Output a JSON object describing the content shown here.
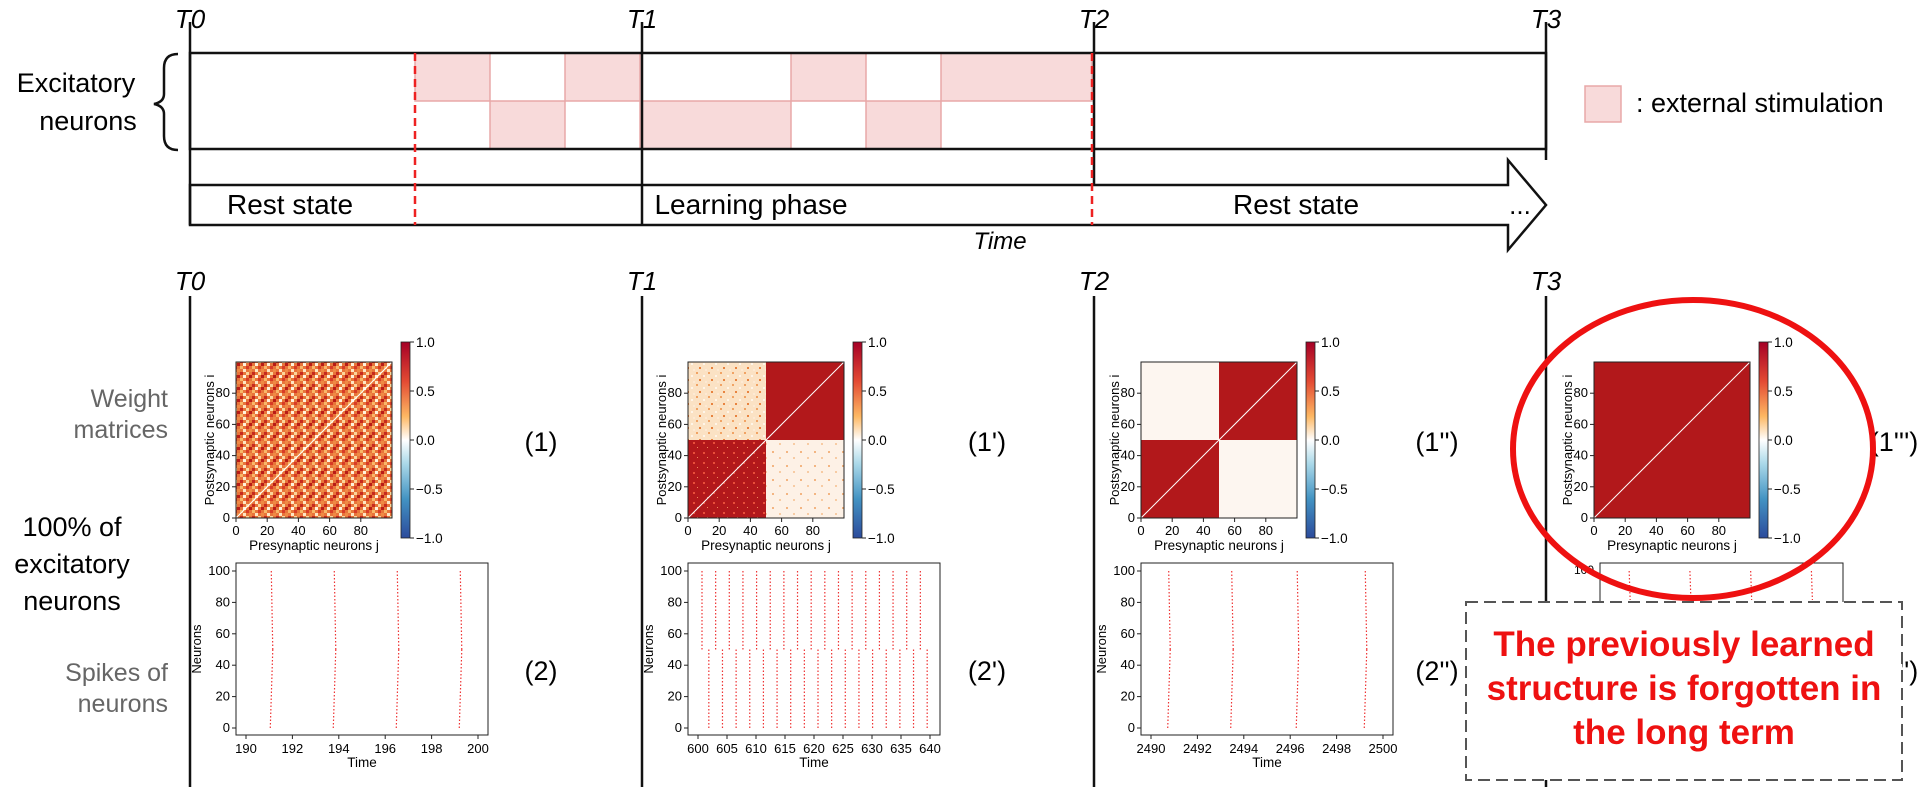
{
  "timeline": {
    "markers_top": [
      "T0",
      "T1",
      "T2",
      "T3"
    ],
    "markers_bottom": [
      "T0",
      "T1",
      "T2",
      "T3"
    ],
    "excitatory_label_1": "Excitatory",
    "excitatory_label_2": "neurons",
    "legend_label": ": external stimulation",
    "phases": [
      "Rest state",
      "Learning phase",
      "Rest state"
    ],
    "ellipsis": "...",
    "time_label": "Time"
  },
  "rows": {
    "weight_label_1": "Weight",
    "weight_label_2": "matrices",
    "pct_label_1": "100% of",
    "pct_label_2": "excitatory",
    "pct_label_3": "neurons",
    "spikes_label_1": "Spikes of",
    "spikes_label_2": "neurons"
  },
  "panel_ids": {
    "weights": [
      "(1)",
      "(1')",
      "(1'')",
      "(1''')"
    ],
    "spikes": [
      "(2)",
      "(2')",
      "(2'')",
      "(2''')"
    ]
  },
  "weight_plot": {
    "xlabel": "Presynaptic neurons j",
    "ylabel": "Postsynaptic neurons i",
    "ticks": [
      "0",
      "20",
      "40",
      "60",
      "80"
    ],
    "colorbar_ticks": [
      "1.0",
      "0.5",
      "0.0",
      "−0.5",
      "−1.0"
    ]
  },
  "spike_plots": [
    {
      "xticks": [
        "190",
        "192",
        "194",
        "196",
        "198",
        "200"
      ],
      "xlabel": "Time",
      "ylabel": "Neurons"
    },
    {
      "xticks": [
        "600",
        "605",
        "610",
        "615",
        "620",
        "625",
        "630",
        "635",
        "640"
      ],
      "xlabel": "Time",
      "ylabel": "Neurons"
    },
    {
      "xticks": [
        "2490",
        "2492",
        "2494",
        "2496",
        "2498",
        "2500"
      ],
      "xlabel": "Time",
      "ylabel": "Neurons"
    }
  ],
  "spike_yticks": [
    "0",
    "20",
    "40",
    "60",
    "80",
    "100"
  ],
  "callout": {
    "line1": "The previously learned",
    "line2": "structure is forgotten in",
    "line3": "the long term"
  },
  "colors": {
    "stim_fill": "#f8dada",
    "stim_stroke": "#e8a8a8",
    "dashed_red": "#ee2222",
    "matrix_red": "#b2181b",
    "callout_red": "#ee1111"
  }
}
